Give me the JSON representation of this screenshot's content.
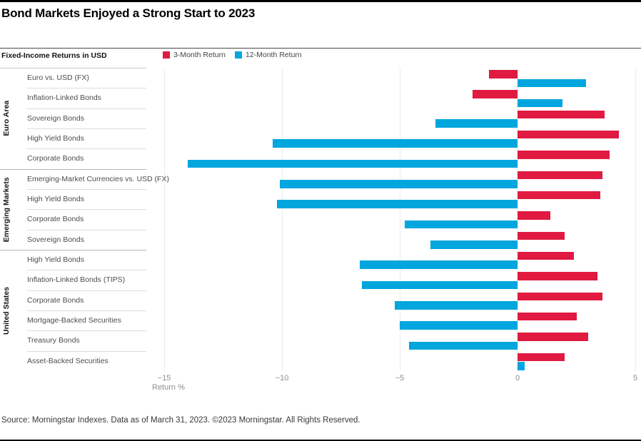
{
  "title": "Bond Markets Enjoyed a Strong Start to 2023",
  "subtitle": "Fixed-Income Returns in USD",
  "legend": [
    {
      "label": "3-Month Return",
      "color": "#E01A41"
    },
    {
      "label": "12-Month Return",
      "color": "#00A6DD"
    }
  ],
  "source": "Source: Morningstar Indexes. Data as of March 31, 2023. ©2023 Morningstar. All Rights Reserved.",
  "chart_data": {
    "type": "bar",
    "orientation": "horizontal",
    "xlabel": "Return %",
    "xlim": [
      -15,
      5
    ],
    "xticks": [
      -15,
      -10,
      -5,
      0,
      5
    ],
    "xtick_labels": [
      "−15",
      "−10",
      "−5",
      "0",
      "5"
    ],
    "series_names": [
      "3-Month Return",
      "12-Month Return"
    ],
    "grid": "vertical-faint",
    "legend_position": "top",
    "groups": [
      {
        "name": "Euro Area",
        "rows": [
          {
            "label": "Euro vs. USD (FX)",
            "three_month": -1.2,
            "twelve_month": 2.9
          },
          {
            "label": "Inflation-Linked Bonds",
            "three_month": -1.9,
            "twelve_month": 1.9
          },
          {
            "label": "Sovereign Bonds",
            "three_month": 3.7,
            "twelve_month": -3.5
          },
          {
            "label": "High Yield Bonds",
            "three_month": 4.3,
            "twelve_month": -10.4
          },
          {
            "label": "Corporate Bonds",
            "three_month": 3.9,
            "twelve_month": -14.0
          }
        ]
      },
      {
        "name": "Emerging Markets",
        "rows": [
          {
            "label": "Emerging-Market Currencies vs. USD (FX)",
            "three_month": 3.6,
            "twelve_month": -10.1
          },
          {
            "label": "High Yield Bonds",
            "three_month": 3.5,
            "twelve_month": -10.2
          },
          {
            "label": "Corporate Bonds",
            "three_month": 1.4,
            "twelve_month": -4.8
          },
          {
            "label": "Sovereign Bonds",
            "three_month": 2.0,
            "twelve_month": -3.7
          }
        ]
      },
      {
        "name": "United States",
        "rows": [
          {
            "label": "High Yield Bonds",
            "three_month": 2.4,
            "twelve_month": -6.7
          },
          {
            "label": "Inflation-Linked Bonds (TIPS)",
            "three_month": 3.4,
            "twelve_month": -6.6
          },
          {
            "label": "Corporate Bonds",
            "three_month": 3.6,
            "twelve_month": -5.2
          },
          {
            "label": "Mortgage-Backed Securities",
            "three_month": 2.5,
            "twelve_month": -5.0
          },
          {
            "label": "Treasury Bonds",
            "three_month": 3.0,
            "twelve_month": -4.6
          },
          {
            "label": "Asset-Backed Securities",
            "three_month": 2.0,
            "twelve_month": 0.3
          }
        ]
      }
    ]
  }
}
